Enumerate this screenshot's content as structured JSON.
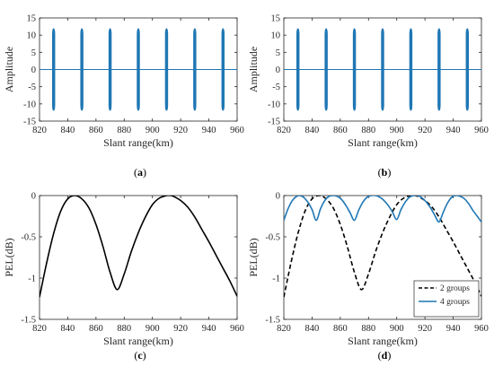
{
  "chart_data": [
    {
      "type": "line",
      "caption": "(a)",
      "xlabel": "Slant range(km)",
      "ylabel": "Amplitude",
      "xlim": [
        820,
        960
      ],
      "ylim": [
        -15,
        15
      ],
      "xticks": [
        "820",
        "840",
        "860",
        "880",
        "900",
        "920",
        "940",
        "960"
      ],
      "yticks": [
        "-15",
        "-10",
        "-5",
        "0",
        "5",
        "10",
        "15"
      ],
      "grid": false,
      "color": "#1f77b4",
      "pulse_centers": [
        830,
        850,
        870,
        890,
        910,
        930,
        950
      ],
      "pulse_width": 2.2,
      "amplitude": 12,
      "series": [
        {
          "values": [
            0
          ]
        }
      ]
    },
    {
      "type": "line",
      "caption": "(b)",
      "xlabel": "Slant range(km)",
      "ylabel": "Amplitude",
      "xlim": [
        820,
        960
      ],
      "ylim": [
        -15,
        15
      ],
      "xticks": [
        "820",
        "840",
        "860",
        "880",
        "900",
        "920",
        "940",
        "960"
      ],
      "yticks": [
        "-15",
        "-10",
        "-5",
        "0",
        "5",
        "10",
        "15"
      ],
      "grid": false,
      "color": "#1f77b4",
      "pulse_centers": [
        830,
        850,
        870,
        890,
        910,
        930,
        950
      ],
      "pulse_width": 2.2,
      "amplitude": 12,
      "series": [
        {
          "values": [
            0
          ]
        }
      ]
    },
    {
      "type": "line",
      "caption": "(c)",
      "xlabel": "Slant range(km)",
      "ylabel": "PEL(dB)",
      "xlim": [
        820,
        960
      ],
      "ylim": [
        -1.5,
        0
      ],
      "xticks": [
        "820",
        "840",
        "860",
        "880",
        "900",
        "920",
        "940",
        "960"
      ],
      "yticks": [
        "-1.5",
        "-1",
        "-0.5",
        "0"
      ],
      "grid": false,
      "legend": null,
      "series": [
        {
          "color": "#000000",
          "dash": "solid",
          "x": [
            820,
            825,
            830,
            835,
            840,
            845,
            850,
            855,
            860,
            865,
            870,
            875,
            880,
            885,
            890,
            895,
            900,
            905,
            910,
            913,
            915,
            920,
            925,
            930,
            935,
            940,
            945,
            950,
            955,
            960
          ],
          "y": [
            -1.23,
            -0.82,
            -0.46,
            -0.19,
            -0.04,
            0.0,
            -0.04,
            -0.15,
            -0.35,
            -0.62,
            -0.93,
            -1.14,
            -0.95,
            -0.68,
            -0.45,
            -0.26,
            -0.11,
            -0.03,
            0.0,
            0.0,
            -0.01,
            -0.06,
            -0.14,
            -0.26,
            -0.41,
            -0.56,
            -0.72,
            -0.88,
            -1.04,
            -1.22
          ]
        }
      ]
    },
    {
      "type": "line",
      "caption": "(d)",
      "xlabel": "Slant range(km)",
      "ylabel": "PEL(dB)",
      "xlim": [
        820,
        960
      ],
      "ylim": [
        -1.5,
        0
      ],
      "xticks": [
        "820",
        "840",
        "860",
        "880",
        "900",
        "920",
        "940",
        "960"
      ],
      "yticks": [
        "-1.5",
        "-1",
        "-0.5",
        "0"
      ],
      "grid": false,
      "legend_position": "bottom-right",
      "series": [
        {
          "name": "2 groups",
          "color": "#000000",
          "dash": "dashed",
          "x": [
            820,
            825,
            830,
            835,
            840,
            845,
            850,
            855,
            860,
            865,
            870,
            875,
            880,
            885,
            890,
            895,
            900,
            905,
            910,
            913,
            915,
            920,
            925,
            930,
            935,
            940,
            945,
            950,
            955,
            960
          ],
          "y": [
            -1.23,
            -0.82,
            -0.46,
            -0.19,
            -0.04,
            0.0,
            -0.04,
            -0.15,
            -0.35,
            -0.62,
            -0.93,
            -1.14,
            -0.95,
            -0.68,
            -0.45,
            -0.26,
            -0.11,
            -0.03,
            0.0,
            0.0,
            -0.01,
            -0.06,
            -0.14,
            -0.26,
            -0.41,
            -0.56,
            -0.72,
            -0.88,
            -1.04,
            -1.22
          ]
        },
        {
          "name": "4 groups",
          "color": "#1f77b4",
          "dash": "solid",
          "x": [
            820,
            823,
            826,
            829,
            831,
            834,
            837,
            840,
            843,
            846,
            849,
            852,
            855,
            858,
            861,
            864,
            867,
            870,
            873,
            876,
            879,
            882,
            885,
            888,
            891,
            894,
            897,
            900,
            903,
            906,
            909,
            912,
            915,
            918,
            921,
            924,
            927,
            930,
            933,
            936,
            939,
            942,
            945,
            948,
            951,
            954,
            957,
            960
          ],
          "y": [
            -0.3,
            -0.16,
            -0.06,
            -0.01,
            0.0,
            -0.02,
            -0.08,
            -0.17,
            -0.3,
            -0.16,
            -0.06,
            -0.01,
            0.0,
            -0.01,
            -0.05,
            -0.12,
            -0.21,
            -0.3,
            -0.18,
            -0.08,
            -0.02,
            0.0,
            0.0,
            -0.02,
            -0.06,
            -0.12,
            -0.2,
            -0.29,
            -0.17,
            -0.08,
            -0.02,
            0.0,
            0.0,
            -0.03,
            -0.08,
            -0.15,
            -0.24,
            -0.32,
            -0.2,
            -0.09,
            -0.02,
            0.0,
            -0.01,
            -0.04,
            -0.1,
            -0.18,
            -0.25,
            -0.32
          ]
        }
      ]
    }
  ]
}
